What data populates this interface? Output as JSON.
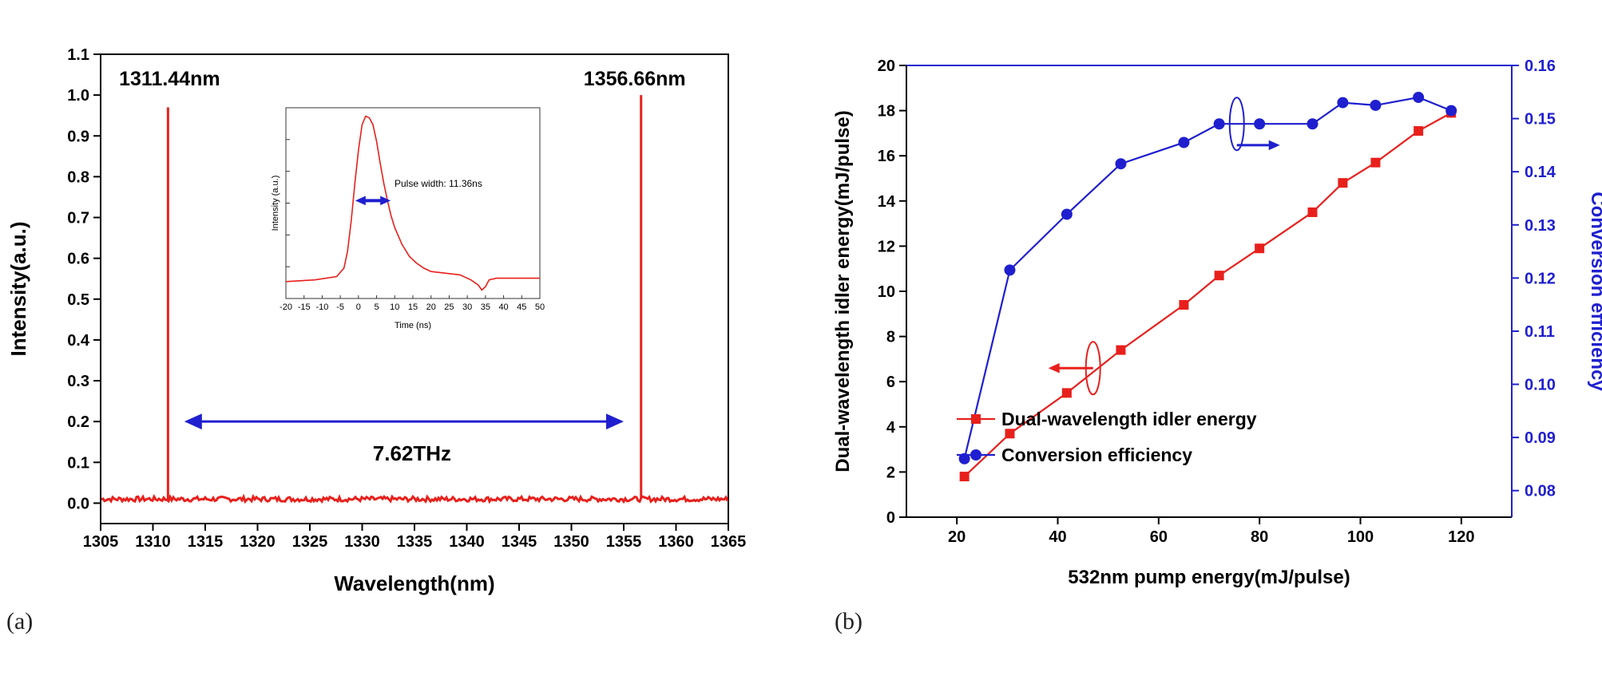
{
  "colors": {
    "red": "#e8201c",
    "blue": "#1f1fd0",
    "axis": "#000000",
    "axis_right": "#1f1fd0"
  },
  "panel_labels": {
    "a": "(a)",
    "b": "(b)"
  },
  "chart_data": [
    {
      "id": "a",
      "type": "line",
      "xlabel": "Wavelength(nm)",
      "ylabel": "Intensity(a.u.)",
      "xlim": [
        1305,
        1365
      ],
      "ylim": [
        -0.05,
        1.1
      ],
      "xticks": [
        1305,
        1310,
        1315,
        1320,
        1325,
        1330,
        1335,
        1340,
        1345,
        1350,
        1355,
        1360,
        1365
      ],
      "yticks": [
        0.0,
        0.1,
        0.2,
        0.3,
        0.4,
        0.5,
        0.6,
        0.7,
        0.8,
        0.9,
        1.0,
        1.1
      ],
      "ytick_labels": [
        "0.0",
        "0.1",
        "0.2",
        "0.3",
        "0.4",
        "0.5",
        "0.6",
        "0.7",
        "0.8",
        "0.9",
        "1.0",
        "1.1"
      ],
      "series": [
        {
          "color": "#e8201c",
          "baseline": 0.01,
          "peaks": [
            {
              "x": 1311.44,
              "y": 0.97
            },
            {
              "x": 1356.66,
              "y": 1.0
            }
          ]
        }
      ],
      "annotations": [
        {
          "text": "1311.44nm",
          "x": 1311.44,
          "y": 1.0
        },
        {
          "text": "1356.66nm",
          "x": 1356.66,
          "y": 1.0
        },
        {
          "text": "7.62THz",
          "arrow_from": 1313,
          "arrow_to": 1355,
          "arrow_y": 0.2,
          "text_y": 0.12
        }
      ],
      "inset": {
        "type": "line",
        "xlabel": "Time (ns)",
        "ylabel": "Intensity (a.u.)",
        "xlim": [
          -20,
          50
        ],
        "ylim": [
          -0.08,
          1.05
        ],
        "xticks": [
          -20,
          -15,
          -10,
          -5,
          0,
          5,
          10,
          15,
          20,
          25,
          30,
          35,
          40,
          45,
          50
        ],
        "annotation": "Pulse width: 11.36ns",
        "arrow": {
          "from": 0,
          "to": 8,
          "y": 0.5
        },
        "x": [
          -20,
          -12,
          -6,
          -4,
          -3,
          -2,
          -1,
          0,
          1,
          2,
          3,
          4,
          5,
          6,
          7,
          8,
          9,
          10,
          12,
          14,
          16,
          18,
          20,
          24,
          28,
          31,
          33,
          34,
          35,
          36,
          38,
          42,
          46,
          50
        ],
        "y": [
          0.02,
          0.03,
          0.05,
          0.1,
          0.2,
          0.38,
          0.6,
          0.8,
          0.95,
          1.0,
          0.99,
          0.95,
          0.85,
          0.72,
          0.6,
          0.5,
          0.41,
          0.34,
          0.24,
          0.17,
          0.13,
          0.1,
          0.08,
          0.07,
          0.06,
          0.03,
          0.0,
          -0.03,
          -0.01,
          0.03,
          0.04,
          0.04,
          0.04,
          0.04
        ]
      }
    },
    {
      "id": "b",
      "type": "line",
      "xlabel": "532nm pump energy(mJ/pulse)",
      "ylabel": "Dual-wavelength idler energy(mJ/pulse)",
      "y2label": "Conversion efficiency",
      "xlim": [
        10,
        130
      ],
      "ylim": [
        0,
        20
      ],
      "y2lim": [
        0.075,
        0.16
      ],
      "xticks": [
        20,
        40,
        60,
        80,
        100,
        120
      ],
      "yticks": [
        0,
        2,
        4,
        6,
        8,
        10,
        12,
        14,
        16,
        18,
        20
      ],
      "y2ticks": [
        0.08,
        0.09,
        0.1,
        0.11,
        0.12,
        0.13,
        0.14,
        0.15,
        0.16
      ],
      "y2tick_labels": [
        "0.08",
        "0.09",
        "0.10",
        "0.11",
        "0.12",
        "0.13",
        "0.14",
        "0.15",
        "0.16"
      ],
      "legend_position": "bottom-right",
      "series": [
        {
          "name": "Dual-wavelength idler energy",
          "axis": "left",
          "marker": "square",
          "color": "#e8201c",
          "x": [
            21.5,
            30.5,
            41.8,
            52.5,
            65,
            72,
            80,
            90.5,
            96.5,
            103,
            111.5,
            118
          ],
          "y": [
            1.8,
            3.7,
            5.5,
            7.4,
            9.4,
            10.7,
            11.9,
            13.5,
            14.8,
            15.7,
            17.1,
            17.9
          ]
        },
        {
          "name": "Conversion efficiency",
          "axis": "right",
          "marker": "circle",
          "color": "#1f1fd0",
          "x": [
            21.5,
            30.5,
            41.8,
            52.5,
            65,
            72,
            80,
            90.5,
            96.5,
            103,
            111.5,
            118
          ],
          "y": [
            0.086,
            0.1215,
            0.132,
            0.1415,
            0.1455,
            0.149,
            0.149,
            0.149,
            0.153,
            0.1525,
            0.154,
            0.1515
          ]
        }
      ]
    }
  ]
}
